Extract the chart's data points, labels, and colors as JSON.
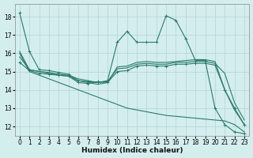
{
  "xlabel": "Humidex (Indice chaleur)",
  "background_color": "#d4eeee",
  "grid_color": "#b8d8d8",
  "line_color": "#2a7a6a",
  "xlim": [
    -0.5,
    23.5
  ],
  "ylim": [
    11.5,
    18.7
  ],
  "yticks": [
    12,
    13,
    14,
    15,
    16,
    17,
    18
  ],
  "xticks": [
    0,
    1,
    2,
    3,
    4,
    5,
    6,
    7,
    8,
    9,
    10,
    11,
    12,
    13,
    14,
    15,
    16,
    17,
    18,
    19,
    20,
    21,
    22,
    23
  ],
  "series": [
    {
      "x": [
        0,
        1,
        2,
        3,
        4,
        5,
        6,
        7,
        8,
        9,
        10,
        11,
        12,
        13,
        14,
        15,
        16,
        17,
        18,
        19,
        20,
        21,
        22,
        23
      ],
      "y": [
        18.2,
        16.1,
        15.1,
        15.05,
        14.95,
        14.85,
        14.5,
        14.45,
        14.4,
        14.5,
        16.6,
        17.2,
        16.6,
        16.6,
        16.6,
        18.05,
        17.8,
        16.8,
        15.6,
        15.6,
        13.0,
        12.1,
        11.7,
        11.6
      ],
      "marker": "+"
    },
    {
      "x": [
        0,
        1,
        2,
        3,
        4,
        5,
        6,
        7,
        8,
        9,
        10,
        11,
        12,
        13,
        14,
        15,
        16,
        17,
        18,
        19,
        20,
        21,
        22,
        23
      ],
      "y": [
        16.1,
        15.1,
        15.0,
        14.9,
        14.8,
        14.75,
        14.5,
        14.4,
        14.3,
        14.4,
        15.25,
        15.3,
        15.5,
        15.55,
        15.5,
        15.5,
        15.55,
        15.6,
        15.65,
        15.65,
        15.55,
        14.0,
        12.9,
        12.1
      ],
      "marker": null
    },
    {
      "x": [
        0,
        1,
        2,
        3,
        4,
        5,
        6,
        7,
        8,
        9,
        10,
        11,
        12,
        13,
        14,
        15,
        16,
        17,
        18,
        19,
        20,
        21,
        22,
        23
      ],
      "y": [
        15.8,
        15.1,
        15.0,
        14.95,
        14.85,
        14.8,
        14.6,
        14.5,
        14.4,
        14.45,
        15.15,
        15.2,
        15.4,
        15.45,
        15.4,
        15.4,
        15.5,
        15.5,
        15.55,
        15.55,
        15.45,
        14.9,
        13.3,
        12.35
      ],
      "marker": null
    },
    {
      "x": [
        0,
        1,
        2,
        3,
        4,
        5,
        6,
        7,
        8,
        9,
        10,
        11,
        12,
        13,
        14,
        15,
        16,
        17,
        18,
        19,
        20,
        21,
        22,
        23
      ],
      "y": [
        15.5,
        15.05,
        14.9,
        14.85,
        14.8,
        14.75,
        14.4,
        14.35,
        14.45,
        14.4,
        15.0,
        15.05,
        15.3,
        15.35,
        15.3,
        15.3,
        15.4,
        15.4,
        15.45,
        15.45,
        15.35,
        14.0,
        13.0,
        12.1
      ],
      "marker": "+"
    },
    {
      "x": [
        0,
        1,
        2,
        3,
        4,
        5,
        6,
        7,
        8,
        9,
        10,
        11,
        12,
        13,
        14,
        15,
        16,
        17,
        18,
        19,
        20,
        21,
        22,
        23
      ],
      "y": [
        16.0,
        15.0,
        14.8,
        14.6,
        14.4,
        14.2,
        14.0,
        13.8,
        13.6,
        13.4,
        13.2,
        13.0,
        12.9,
        12.8,
        12.7,
        12.6,
        12.55,
        12.5,
        12.45,
        12.4,
        12.35,
        12.3,
        12.1,
        11.7
      ],
      "marker": null
    }
  ]
}
